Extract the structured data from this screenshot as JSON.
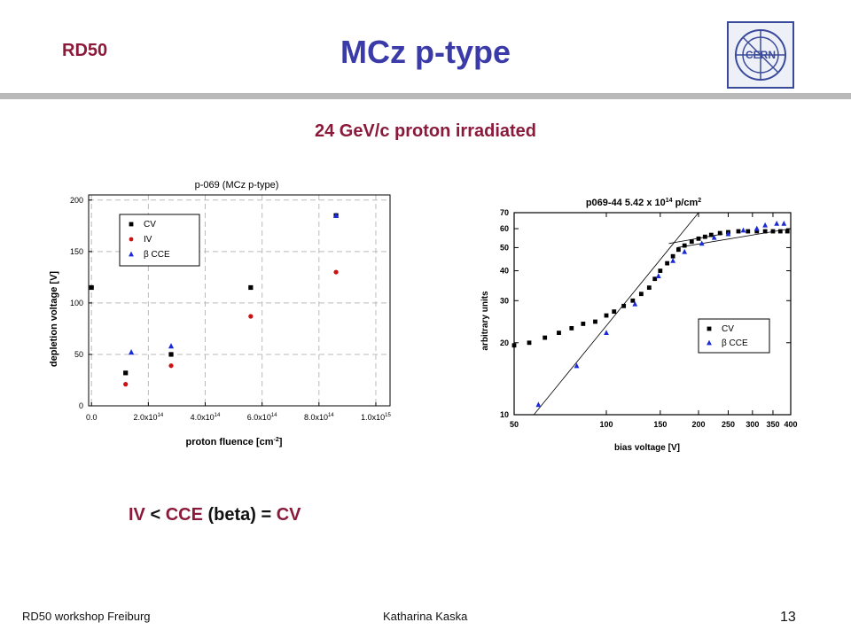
{
  "header": {
    "org": "RD50",
    "title": "MCz p-type"
  },
  "logo": {
    "text": "CERN",
    "icon": "cern-logo"
  },
  "subtitle": "24 GeV/c proton irradiated",
  "conclusion": {
    "a": "IV",
    "op1": " < ",
    "b": "CCE",
    "mid": " (beta) = ",
    "c": "CV"
  },
  "footer": {
    "left": "RD50 workshop Freiburg",
    "author": "Katharina Kaska",
    "page": "13"
  },
  "colors": {
    "accent": "#8b1a3a",
    "title": "#3a3aa8",
    "cv": "#000000",
    "iv": "#cc1111",
    "cce": "#1a2ad8"
  },
  "chart_data": [
    {
      "type": "scatter",
      "title": "p-069 (MCz p-type)",
      "xlabel": "proton fluence [cm",
      "xlabel_sup": "-2",
      "xlabel_end": "]",
      "ylabel": "depletion voltage [V]",
      "xlim": [
        -0.1,
        10.5
      ],
      "ylim": [
        0,
        205
      ],
      "x_scale_label": "×1e14",
      "x_ticks": [
        {
          "v": 0,
          "label": "0.0",
          "sup": ""
        },
        {
          "v": 2,
          "label": "2.0x10",
          "sup": "14"
        },
        {
          "v": 4,
          "label": "4.0x10",
          "sup": "14"
        },
        {
          "v": 6,
          "label": "6.0x10",
          "sup": "14"
        },
        {
          "v": 8,
          "label": "8.0x10",
          "sup": "14"
        },
        {
          "v": 10,
          "label": "1.0x10",
          "sup": "15"
        }
      ],
      "y_ticks": [
        0,
        50,
        100,
        150,
        200
      ],
      "legend": {
        "position": "top-left",
        "entries": [
          "CV",
          "IV",
          "β CCE"
        ]
      },
      "series": [
        {
          "name": "CV",
          "marker": "square",
          "points": [
            [
              0,
              115
            ],
            [
              1.2,
              32
            ],
            [
              2.8,
              50
            ],
            [
              5.6,
              115
            ],
            [
              8.6,
              185
            ]
          ]
        },
        {
          "name": "IV",
          "marker": "circle",
          "points": [
            [
              1.2,
              21
            ],
            [
              2.8,
              39
            ],
            [
              5.6,
              87
            ],
            [
              8.6,
              130
            ]
          ]
        },
        {
          "name": "β CCE",
          "marker": "triangle",
          "points": [
            [
              1.4,
              52
            ],
            [
              2.8,
              58
            ],
            [
              8.6,
              185
            ]
          ]
        }
      ],
      "grid": "dashed"
    },
    {
      "type": "scatter",
      "title": "p069-44 5.42 x 10",
      "title_sup": "14",
      "title_end": " p/cm",
      "title_sup2": "2",
      "xlabel": "bias voltage [V]",
      "ylabel": "arbitrary units",
      "scale": "log-log",
      "xlim": [
        50,
        400
      ],
      "ylim": [
        10,
        70
      ],
      "x_ticks": [
        {
          "v": 50,
          "label": "50"
        },
        {
          "v": 100,
          "label": "100"
        },
        {
          "v": 150,
          "label": "150"
        },
        {
          "v": 200,
          "label": "200"
        },
        {
          "v": 250,
          "label": "250"
        },
        {
          "v": 300,
          "label": "300"
        },
        {
          "v": 350,
          "label": "350"
        },
        {
          "v": 400,
          "label": "400"
        }
      ],
      "y_ticks": [
        10,
        20,
        30,
        40,
        50,
        60,
        70
      ],
      "legend": {
        "position": "bottom-right",
        "entries": [
          "CV",
          "β CCE"
        ]
      },
      "series": [
        {
          "name": "CV",
          "marker": "square",
          "points": [
            [
              50,
              19.5
            ],
            [
              56,
              20
            ],
            [
              63,
              21
            ],
            [
              70,
              22
            ],
            [
              77,
              23
            ],
            [
              84,
              24
            ],
            [
              92,
              24.5
            ],
            [
              100,
              26
            ],
            [
              106,
              27
            ],
            [
              114,
              28.5
            ],
            [
              122,
              30
            ],
            [
              130,
              32
            ],
            [
              138,
              34
            ],
            [
              144,
              37
            ],
            [
              150,
              40
            ],
            [
              158,
              43
            ],
            [
              165,
              46
            ],
            [
              172,
              49
            ],
            [
              180,
              51
            ],
            [
              190,
              53
            ],
            [
              200,
              54.5
            ],
            [
              210,
              55.5
            ],
            [
              220,
              56.5
            ],
            [
              235,
              57.5
            ],
            [
              250,
              58
            ],
            [
              270,
              58.5
            ],
            [
              290,
              58.5
            ],
            [
              310,
              58.5
            ],
            [
              330,
              58.5
            ],
            [
              350,
              58.5
            ],
            [
              370,
              58.5
            ],
            [
              390,
              58.5
            ]
          ]
        },
        {
          "name": "β CCE",
          "marker": "triangle",
          "points": [
            [
              60,
              11
            ],
            [
              80,
              16
            ],
            [
              100,
              22
            ],
            [
              124,
              29
            ],
            [
              148,
              38
            ],
            [
              165,
              44
            ],
            [
              180,
              48
            ],
            [
              205,
              52
            ],
            [
              225,
              55
            ],
            [
              250,
              57
            ],
            [
              280,
              59
            ],
            [
              310,
              60
            ],
            [
              330,
              62
            ],
            [
              360,
              63
            ],
            [
              380,
              63
            ]
          ]
        }
      ],
      "fit_lines": [
        {
          "x0": 58,
          "y0": 10,
          "x1": 200,
          "y1": 70
        },
        {
          "x0": 160,
          "y0": 52,
          "x1": 240,
          "y1": 57
        },
        {
          "x0": 170,
          "y0": 50,
          "x1": 400,
          "y1": 60
        }
      ]
    }
  ]
}
